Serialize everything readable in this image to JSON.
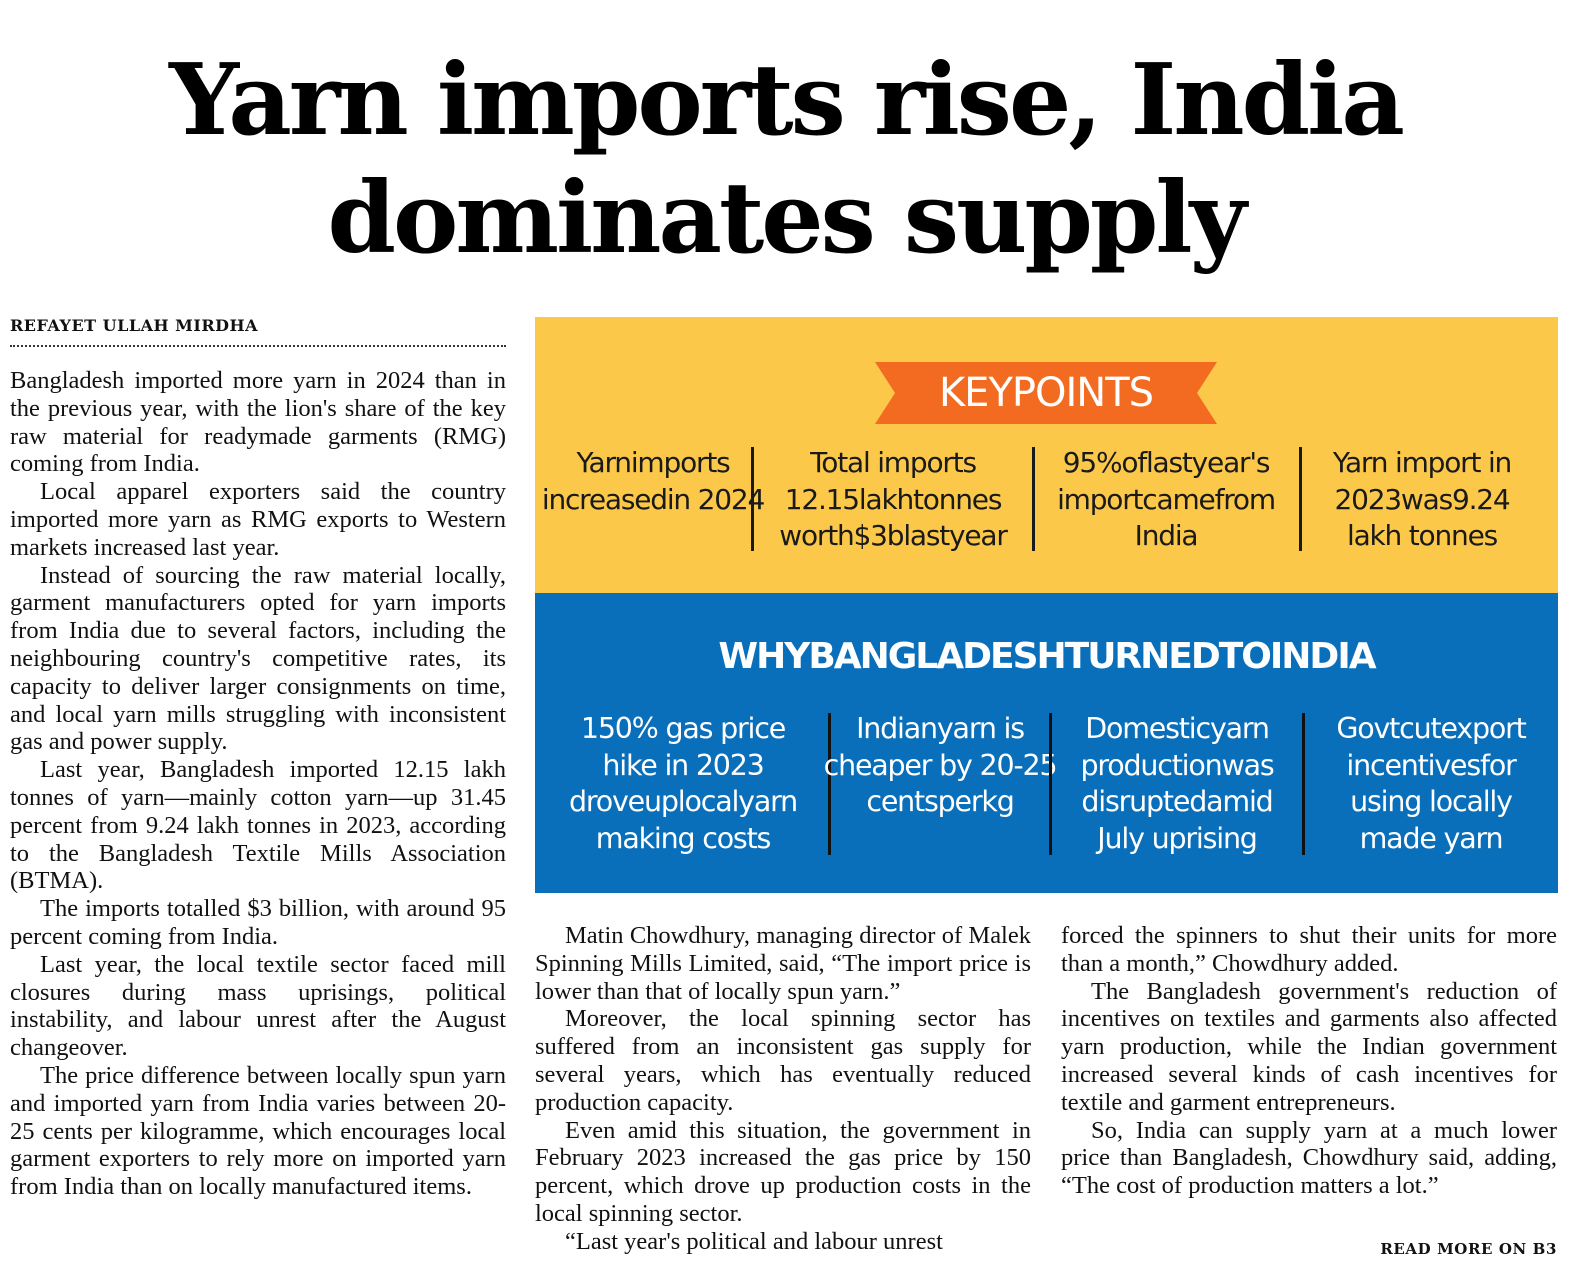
{
  "headline": {
    "line1": "Yarn imports rise, India",
    "line2": "dominates supply"
  },
  "byline": "REFAYET ULLAH MIRDHA",
  "keypoints": {
    "title": "KEYPOINTS",
    "items": [
      "Yarnimports increasedin 2024",
      "Total imports 12.15lakhtonnes worth$3blastyear",
      "95%oflastyear's importcamefrom India",
      "Yarn import in 2023was9.24 lakh tonnes"
    ]
  },
  "why": {
    "title": "WHYBANGLADESHTURNEDTOINDIA",
    "items": [
      "150% gas price hike in 2023 droveuplocalyarn making costs",
      "Indianyarn is cheaper by 20-25 centsperkg",
      "Domesticyarn productionwas disruptedamid July uprising",
      "Govtcutexport incentivesfor using locally made yarn"
    ]
  },
  "colors": {
    "keypoints_bg": "#fcc84a",
    "banner": "#f26b21",
    "why_bg": "#0a6fba"
  },
  "body": {
    "col1": [
      "Bangladesh imported more yarn in 2024 than in the previous year, with the lion's share of the key raw material for readymade garments (RMG) coming from India.",
      "Local apparel exporters said the country imported more yarn as RMG exports to Western markets increased last year.",
      "Instead of sourcing the raw material locally, garment manufacturers opted for yarn imports from India due to several factors, including the neighbouring country's competitive rates, its capacity to deliver larger consignments on time, and local yarn mills struggling with inconsistent gas and power supply.",
      "Last year, Bangladesh imported 12.15 lakh tonnes of yarn—mainly cotton yarn—up 31.45 percent from 9.24 lakh tonnes in 2023, according to the Bangladesh Textile Mills Association (BTMA).",
      "The imports totalled $3 billion, with around 95 percent coming from India.",
      "Last year, the local textile sector faced mill closures during mass uprisings, political instability, and labour unrest after the August changeover.",
      "The price difference between locally spun yarn and imported yarn from India varies between 20-25 cents per kilogramme, which encourages local garment exporters to rely more on imported yarn from India than on locally manufactured items."
    ],
    "col2": [
      "Matin Chowdhury, managing director of Malek Spinning Mills Limited, said, “The import price is lower than that of locally spun yarn.”",
      "Moreover, the local spinning sector has suffered from an inconsistent gas supply for several years, which has eventually reduced production capacity.",
      "Even amid this situation, the government in February 2023 increased the gas price by 150 percent, which drove up production costs in the local spinning sector.",
      "“Last year's political and labour unrest"
    ],
    "col3": [
      "forced the spinners to shut their units for more than a month,” Chowdhury added.",
      "The Bangladesh government's reduction of incentives on textiles and garments also affected yarn production, while the Indian government increased several kinds of cash incentives for textile and garment entrepreneurs.",
      "So, India can supply yarn at a much lower price than Bangladesh, Chowdhury said, adding, “The cost of production matters a lot.”"
    ]
  },
  "read_more": "READ MORE ON B3"
}
